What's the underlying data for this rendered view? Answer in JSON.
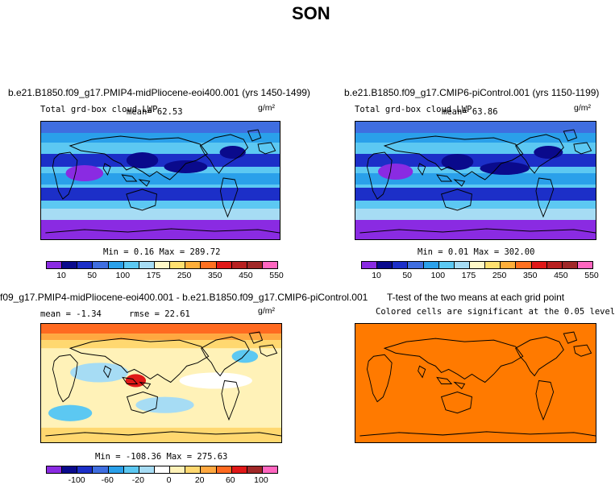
{
  "page": {
    "title": "SON"
  },
  "panels": {
    "top_left": {
      "title": "b.e21.B1850.f09_g17.PMIP4-midPliocene-eoi400.001 (yrs 1450-1499)",
      "subtitle": "Total grd-box cloud LWP",
      "mean_text": "mean=  62.53",
      "units": "g/m²",
      "stats_text": "Min =   0.16 Max = 289.72"
    },
    "top_right": {
      "title": "b.e21.B1850.f09_g17.CMIP6-piControl.001 (yrs 1150-1199)",
      "subtitle": "Total grd-box cloud LWP",
      "mean_text": "mean=  63.86",
      "units": "g/m²",
      "stats_text": "Min =   0.01 Max = 302.00"
    },
    "bottom_left": {
      "title": "f09_g17.PMIP4-midPliocene-eoi400.001 - b.e21.B1850.f09_g17.CMIP6-piControl.001",
      "mean_text": "mean =  -1.34",
      "rmse_text": "rmse =  22.61",
      "units": "g/m²",
      "stats_text": "Min = -108.36 Max = 275.63"
    },
    "bottom_right": {
      "title": "T-test of the two means at each grid point",
      "subtitle": "Colored cells are significant at the 0.05 level"
    }
  },
  "colorbars": {
    "lwp_colors": [
      "#8a2be2",
      "#0a0a8c",
      "#1c2fc8",
      "#3f6ee0",
      "#2aa0ea",
      "#5cc8f2",
      "#a6dcf4",
      "#fff8c8",
      "#ffe070",
      "#ffae3a",
      "#ff7020",
      "#e01818",
      "#b82020",
      "#a02828",
      "#ff66c0"
    ],
    "lwp_labels": [
      "10",
      "50",
      "100",
      "175",
      "250",
      "350",
      "450",
      "550"
    ],
    "diff_colors": [
      "#8a2be2",
      "#0a0a8c",
      "#1c2fc8",
      "#3f6ee0",
      "#2aa0ea",
      "#5cc8f2",
      "#a6dcf4",
      "#ffffff",
      "#fff2b8",
      "#ffd870",
      "#ffa840",
      "#ff6a20",
      "#e01818",
      "#a02828",
      "#ff66c0"
    ],
    "diff_labels": [
      "-100",
      "-60",
      "-20",
      "0",
      "20",
      "60",
      "100"
    ]
  },
  "chart_data": [
    {
      "type": "heatmap",
      "title": "b.e21.B1850.f09_g17.PMIP4-midPliocene-eoi400.001 (yrs 1450-1499)",
      "variable": "Total grd-box cloud LWP",
      "units": "g/m^2",
      "mean": 62.53,
      "min": 0.16,
      "max": 289.72,
      "levels": [
        10,
        50,
        100,
        175,
        250,
        350,
        450,
        550
      ]
    },
    {
      "type": "heatmap",
      "title": "b.e21.B1850.f09_g17.CMIP6-piControl.001 (yrs 1150-1199)",
      "variable": "Total grd-box cloud LWP",
      "units": "g/m^2",
      "mean": 63.86,
      "min": 0.01,
      "max": 302.0,
      "levels": [
        10,
        50,
        100,
        175,
        250,
        350,
        450,
        550
      ]
    },
    {
      "type": "heatmap",
      "title": "f09_g17.PMIP4-midPliocene-eoi400.001 - b.e21.B1850.f09_g17.CMIP6-piControl.001",
      "units": "g/m^2",
      "mean": -1.34,
      "rmse": 22.61,
      "min": -108.36,
      "max": 275.63,
      "levels": [
        -100,
        -60,
        -20,
        0,
        20,
        60,
        100
      ]
    },
    {
      "type": "heatmap",
      "title": "T-test of the two means at each grid point",
      "annotation": "Colored cells are significant at the 0.05 level",
      "significance_level": 0.05
    }
  ]
}
